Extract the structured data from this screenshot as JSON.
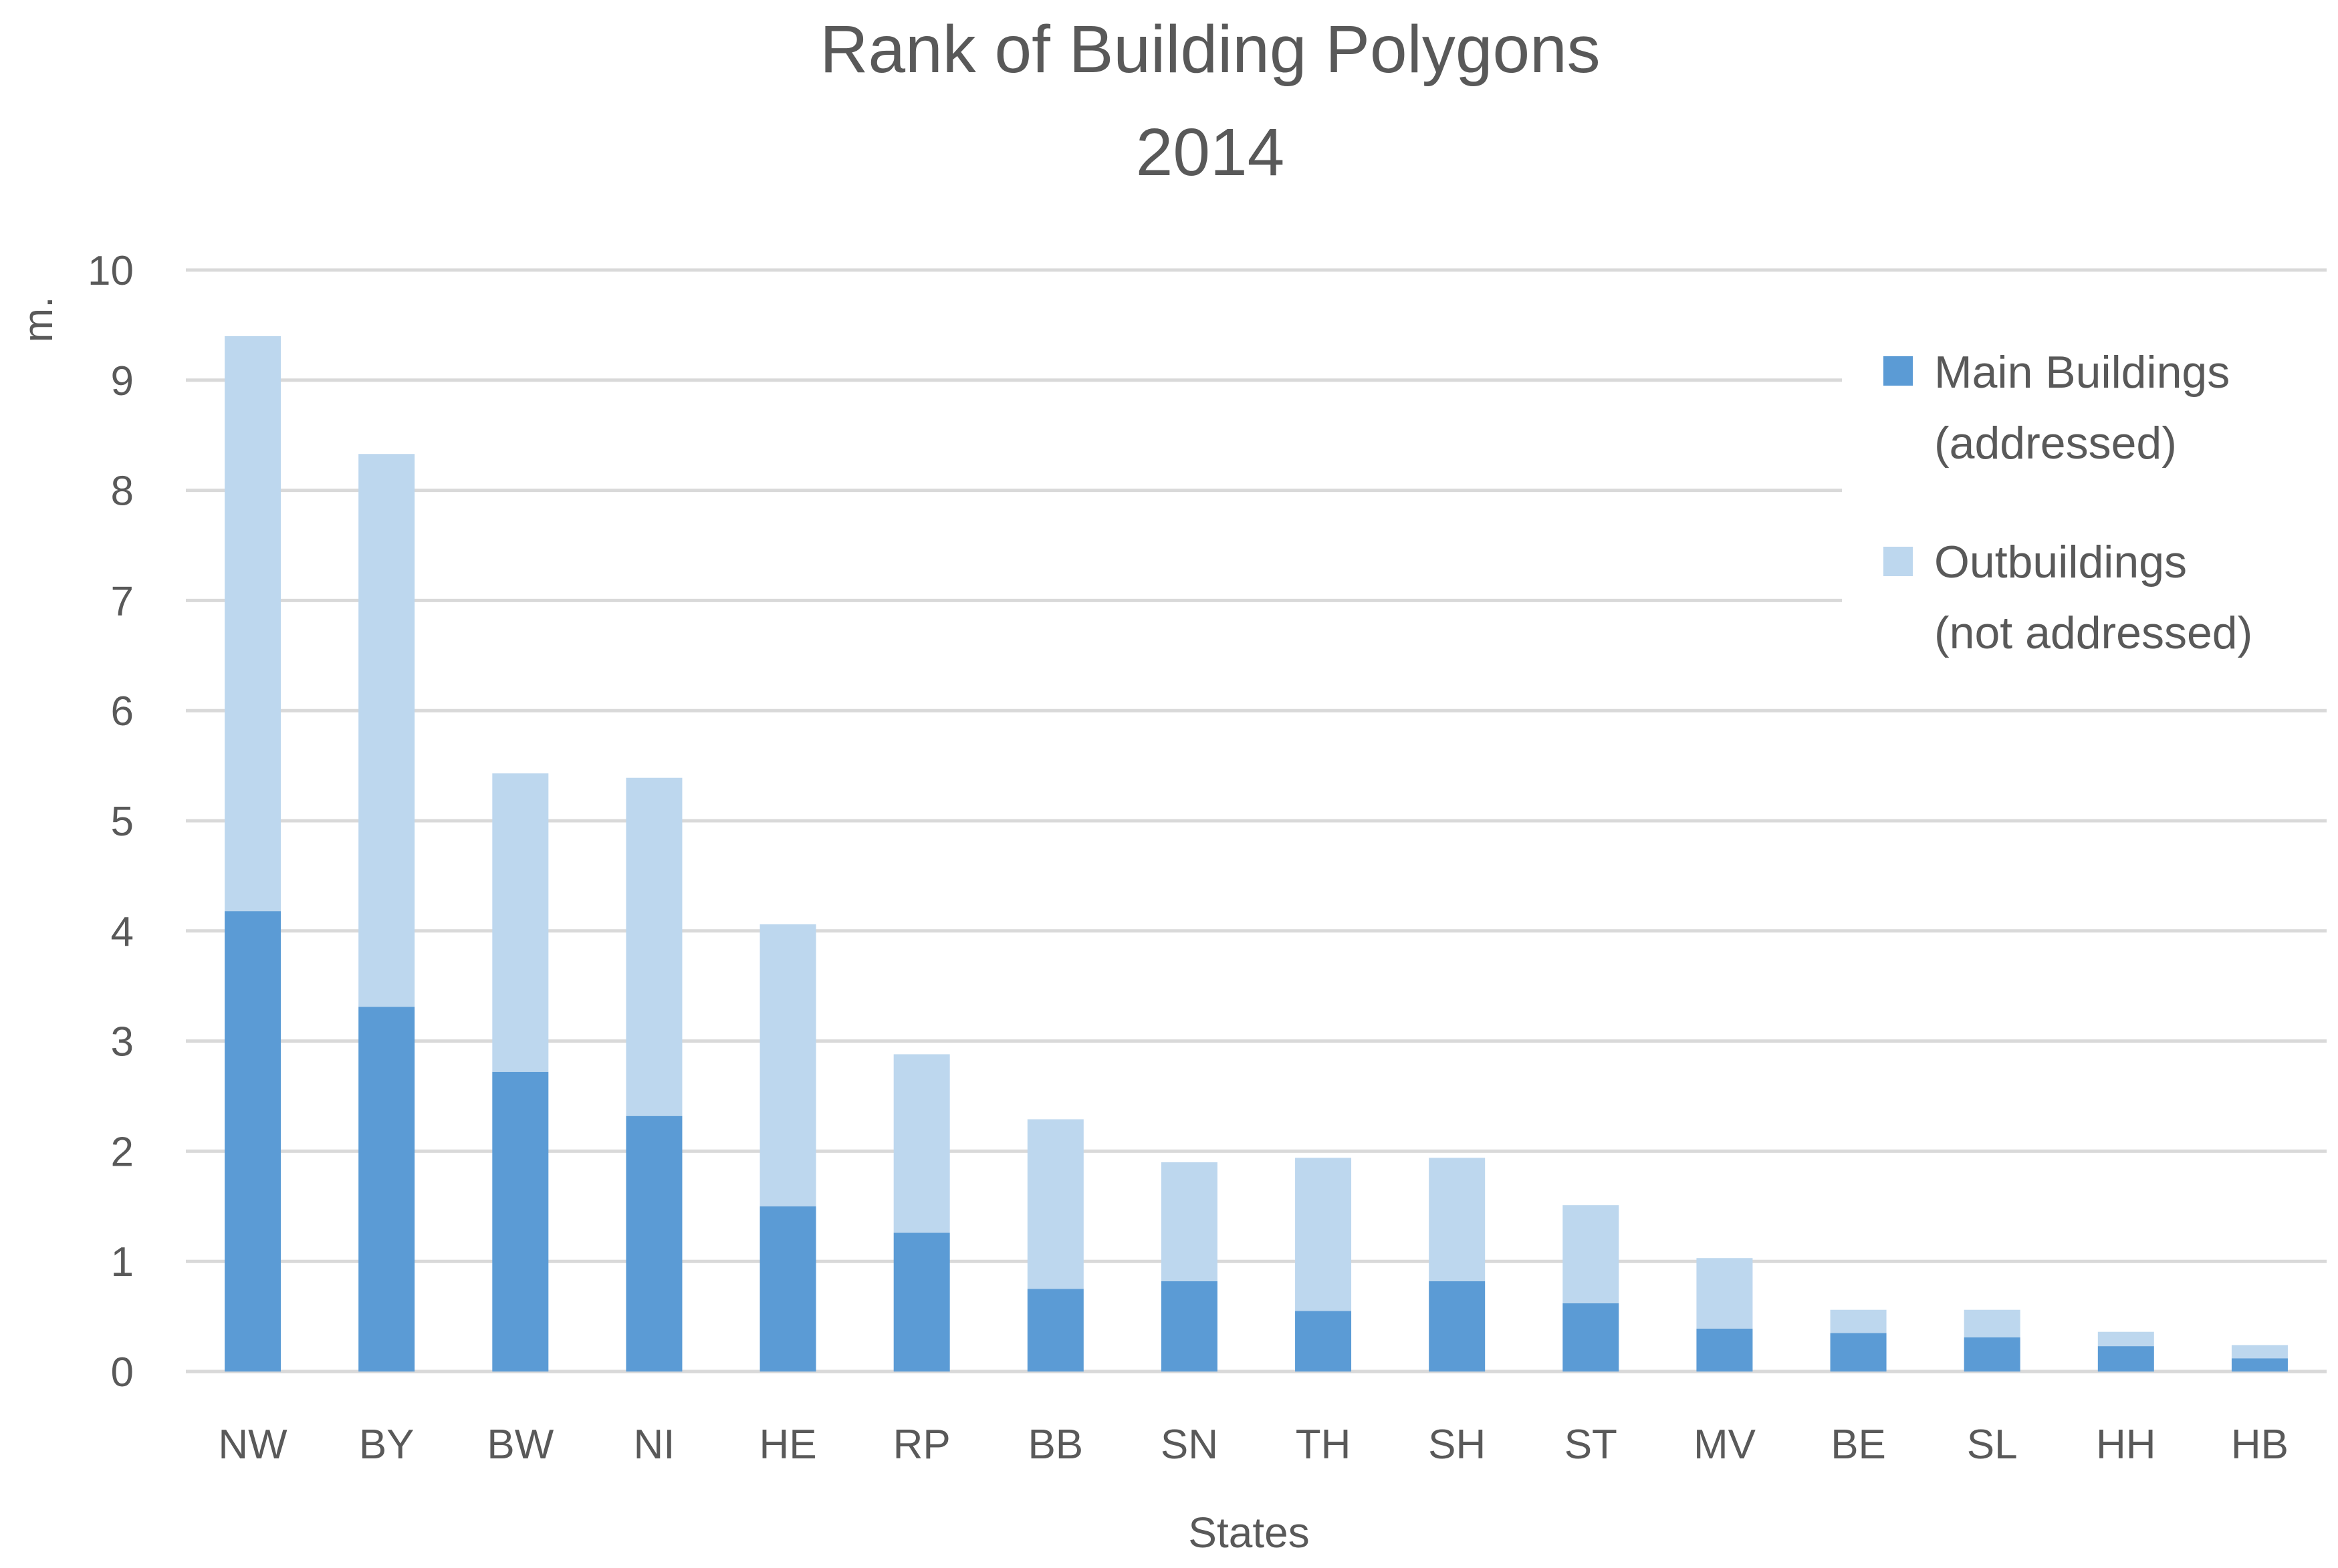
{
  "chart_data": {
    "type": "bar",
    "stacked": true,
    "title": [
      "Rank of Building Polygons",
      "2014"
    ],
    "xlabel": "States",
    "ylabel": "m.",
    "ylim": [
      0,
      10
    ],
    "yticks": [
      0,
      1,
      2,
      3,
      4,
      5,
      6,
      7,
      8,
      9,
      10
    ],
    "grid": true,
    "legend_position": "top-right",
    "categories": [
      "NW",
      "BY",
      "BW",
      "NI",
      "HE",
      "RP",
      "BB",
      "SN",
      "TH",
      "SH",
      "ST",
      "MV",
      "BE",
      "SL",
      "HH",
      "HB"
    ],
    "series": [
      {
        "name": "Main Buildings (addressed)",
        "legend_lines": [
          "Main Buildings",
          "(addressed)"
        ],
        "color": "#5b9bd5",
        "values": [
          4.18,
          3.31,
          2.72,
          2.32,
          1.5,
          1.26,
          0.75,
          0.82,
          0.55,
          0.82,
          0.62,
          0.39,
          0.35,
          0.31,
          0.23,
          0.12
        ]
      },
      {
        "name": "Outbuildings (not addressed)",
        "legend_lines": [
          "Outbuildings",
          "(not addressed)"
        ],
        "color": "#bdd7ee",
        "values": [
          5.22,
          5.02,
          2.71,
          3.07,
          2.56,
          1.62,
          1.54,
          1.08,
          1.39,
          1.12,
          0.89,
          0.64,
          0.21,
          0.25,
          0.13,
          0.12
        ]
      }
    ],
    "gridline_color": "#d9d9d9",
    "text_color": "#595959"
  }
}
